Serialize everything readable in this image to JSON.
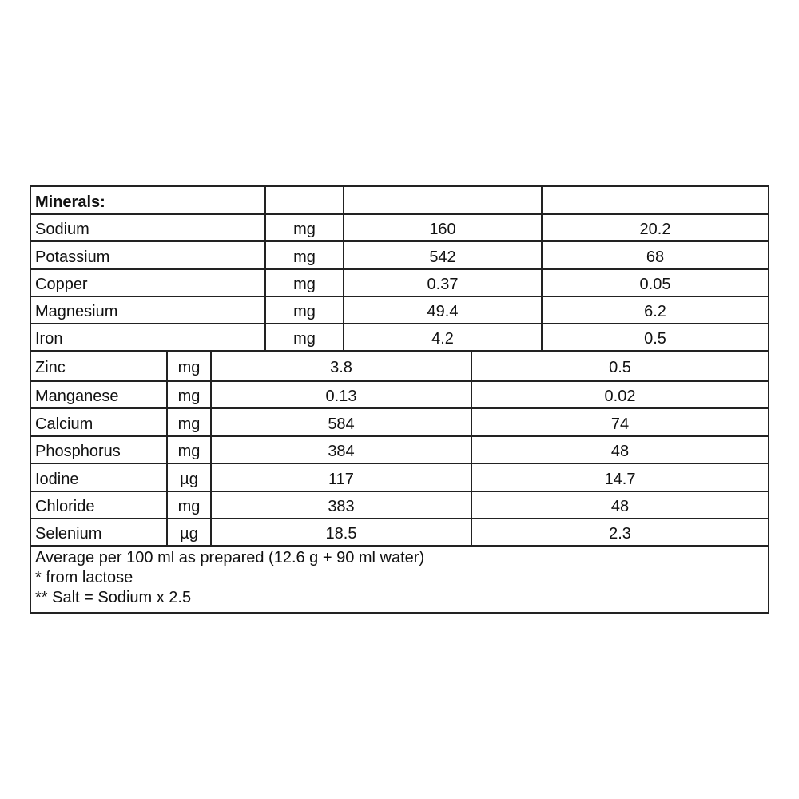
{
  "section_title": "Minerals:",
  "upper_rows": [
    {
      "name": "Sodium",
      "unit": "mg",
      "per_100g": "160",
      "per_100ml": "20.2"
    },
    {
      "name": "Potassium",
      "unit": "mg",
      "per_100g": "542",
      "per_100ml": "68"
    },
    {
      "name": "Copper",
      "unit": "mg",
      "per_100g": "0.37",
      "per_100ml": "0.05"
    },
    {
      "name": "Magnesium",
      "unit": "mg",
      "per_100g": "49.4",
      "per_100ml": "6.2"
    },
    {
      "name": "Iron",
      "unit": "mg",
      "per_100g": "4.2",
      "per_100ml": "0.5"
    }
  ],
  "lower_rows": [
    {
      "name": "Zinc",
      "unit": "mg",
      "per_100g": "3.8",
      "per_100ml": "0.5"
    },
    {
      "name": "Manganese",
      "unit": "mg",
      "per_100g": "0.13",
      "per_100ml": "0.02"
    },
    {
      "name": "Calcium",
      "unit": "mg",
      "per_100g": "584",
      "per_100ml": "74"
    },
    {
      "name": "Phosphorus",
      "unit": "mg",
      "per_100g": "384",
      "per_100ml": "48"
    },
    {
      "name": "Iodine",
      "unit": "µg",
      "per_100g": "117",
      "per_100ml": "14.7"
    },
    {
      "name": "Chloride",
      "unit": "mg",
      "per_100g": "383",
      "per_100ml": "48"
    },
    {
      "name": "Selenium",
      "unit": "µg",
      "per_100g": "18.5",
      "per_100ml": "2.3"
    }
  ],
  "footnotes": [
    "Average per 100 ml as prepared (12.6 g + 90 ml water)",
    "* from lactose",
    "** Salt = Sodium x 2.5"
  ]
}
